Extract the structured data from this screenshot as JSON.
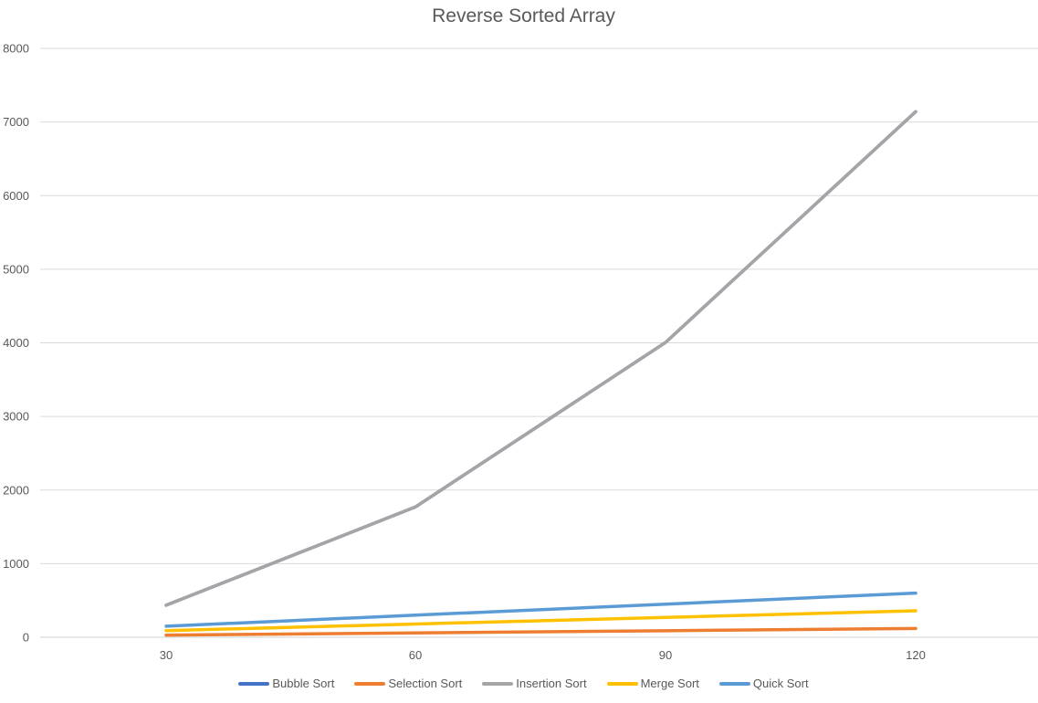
{
  "chart_data": {
    "type": "line",
    "title": "Reverse Sorted Array",
    "xlabel": "",
    "ylabel": "",
    "categories": [
      "30",
      "60",
      "90",
      "120"
    ],
    "ylim": [
      0,
      8000
    ],
    "yticks": [
      "0",
      "1000",
      "2000",
      "3000",
      "4000",
      "5000",
      "6000",
      "7000",
      "8000"
    ],
    "grid": true,
    "legend_position": "bottom",
    "series": [
      {
        "name": "Bubble Sort",
        "color": "#4472C4",
        "values": [
          435,
          1770,
          4005,
          7140
        ]
      },
      {
        "name": "Selection Sort",
        "color": "#ED7D31",
        "values": [
          29,
          59,
          89,
          119
        ]
      },
      {
        "name": "Insertion Sort",
        "color": "#A5A5A5",
        "values": [
          435,
          1770,
          4005,
          7140
        ]
      },
      {
        "name": "Merge Sort",
        "color": "#FFC000",
        "values": [
          90,
          180,
          270,
          360
        ]
      },
      {
        "name": "Quick Sort",
        "color": "#5B9BD5",
        "values": [
          150,
          300,
          450,
          600
        ]
      }
    ]
  }
}
